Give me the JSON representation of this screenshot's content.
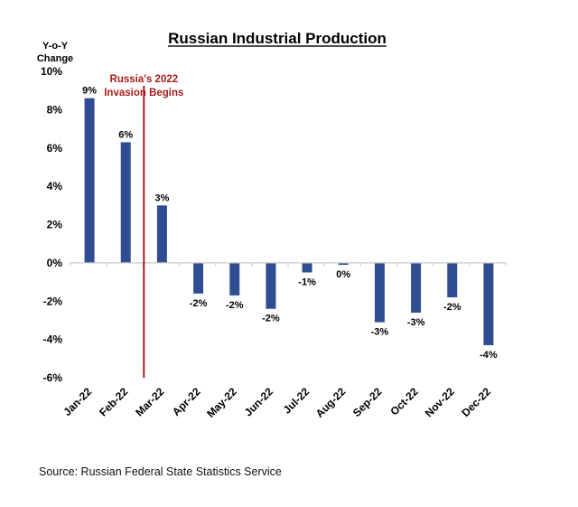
{
  "chart_data": {
    "type": "bar",
    "title": "Russian Industrial Production",
    "ylabel": [
      "Y-o-Y",
      "Change"
    ],
    "xlabel": "",
    "categories": [
      "Jan-22",
      "Feb-22",
      "Mar-22",
      "Apr-22",
      "May-22",
      "Jun-22",
      "Jul-22",
      "Aug-22",
      "Sep-22",
      "Oct-22",
      "Nov-22",
      "Dec-22"
    ],
    "values": [
      8.6,
      6.3,
      3.0,
      -1.6,
      -1.7,
      -2.4,
      -0.5,
      -0.1,
      -3.1,
      -2.6,
      -1.8,
      -4.3
    ],
    "data_labels": [
      "9%",
      "6%",
      "3%",
      "-2%",
      "-2%",
      "-2%",
      "-1%",
      "0%",
      "-3%",
      "-3%",
      "-2%",
      "-4%"
    ],
    "ylim": [
      -6,
      10
    ],
    "yticks": [
      10,
      8,
      6,
      4,
      2,
      0,
      -2,
      -4,
      -6
    ],
    "ytick_labels": [
      "10%",
      "8%",
      "6%",
      "4%",
      "2%",
      "0%",
      "-2%",
      "-4%",
      "-6%"
    ],
    "grid": false,
    "bar_color": "#2f4d93",
    "annotation": {
      "lines": [
        "Russia's 2022",
        "Invasion Begins"
      ],
      "color": "#a61c1c",
      "after_category": "Feb-22"
    }
  },
  "source": "Source: Russian Federal State Statistics Service"
}
